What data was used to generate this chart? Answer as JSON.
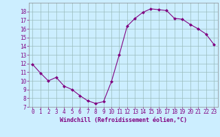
{
  "x": [
    0,
    1,
    2,
    3,
    4,
    5,
    6,
    7,
    8,
    9,
    10,
    11,
    12,
    13,
    14,
    15,
    16,
    17,
    18,
    19,
    20,
    21,
    22,
    23
  ],
  "y": [
    11.9,
    10.9,
    10.0,
    10.4,
    9.4,
    9.0,
    8.3,
    7.7,
    7.4,
    7.6,
    9.9,
    13.0,
    16.3,
    17.2,
    17.9,
    18.3,
    18.2,
    18.1,
    17.2,
    17.1,
    16.5,
    16.0,
    15.4,
    14.2
  ],
  "line_color": "#800080",
  "marker": "D",
  "marker_size": 2.0,
  "background_color": "#cceeff",
  "grid_color": "#99bbbb",
  "xlabel": "Windchill (Refroidissement éolien,°C)",
  "xlabel_color": "#800080",
  "tick_color": "#800080",
  "ylim": [
    7,
    19
  ],
  "xlim": [
    -0.5,
    23.5
  ],
  "yticks": [
    7,
    8,
    9,
    10,
    11,
    12,
    13,
    14,
    15,
    16,
    17,
    18
  ],
  "xticks": [
    0,
    1,
    2,
    3,
    4,
    5,
    6,
    7,
    8,
    9,
    10,
    11,
    12,
    13,
    14,
    15,
    16,
    17,
    18,
    19,
    20,
    21,
    22,
    23
  ],
  "tick_fontsize": 5.5,
  "xlabel_fontsize": 6.0
}
